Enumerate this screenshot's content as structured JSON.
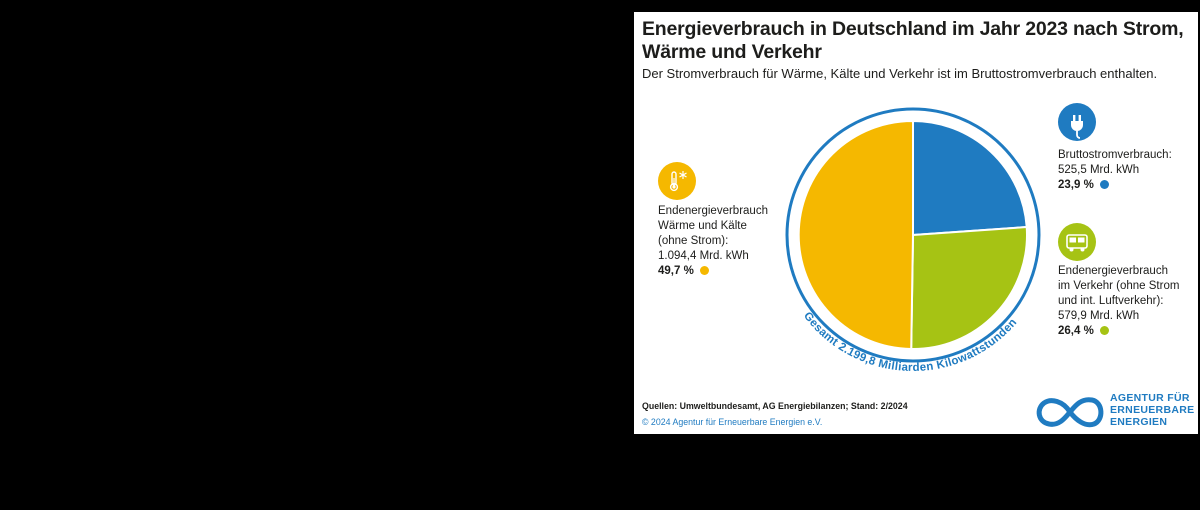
{
  "chart_data": {
    "type": "pie",
    "title": "Energieverbrauch in Deutschland im Jahr 2023 nach Strom, Wärme und Verkehr",
    "subtitle": "Der Stromverbrauch für Wärme, Kälte und Verkehr ist im Bruttostromverbrauch enthalten.",
    "total_label": "Gesamt 2.199,8 Milliarden Kilowattstunden",
    "unit": "Mrd. kWh",
    "slices": [
      {
        "name": "Bruttostromverbrauch",
        "value": 525.5,
        "percent": 23.9,
        "color": "#1f7bc1",
        "label_lines": [
          "Bruttostromverbrauch:",
          "525,5 Mrd. kWh"
        ],
        "percent_label": "23,9 %",
        "icon": "plug-icon"
      },
      {
        "name": "Endenergieverbrauch im Verkehr",
        "value": 579.9,
        "percent": 26.4,
        "color": "#a6c314",
        "label_lines": [
          "Endenergieverbrauch",
          "im Verkehr (ohne Strom",
          "und int. Luftverkehr):",
          "579,9 Mrd. kWh"
        ],
        "percent_label": "26,4 %",
        "icon": "bus-icon"
      },
      {
        "name": "Endenergieverbrauch Wärme und Kälte",
        "value": 1094.4,
        "percent": 49.7,
        "color": "#f5b800",
        "label_lines": [
          "Endenergieverbrauch",
          "Wärme und Kälte",
          "(ohne Strom):",
          "1.094,4 Mrd. kWh"
        ],
        "percent_label": "49,7 %",
        "icon": "thermometer-snowflake-icon"
      }
    ]
  },
  "footer": {
    "sources": "Quellen: Umweltbundesamt, AG Energiebilanzen; Stand: 2/2024",
    "copyright": "© 2024 Agentur für Erneuerbare Energien e.V."
  },
  "logo": {
    "lines": [
      "AGENTUR FÜR",
      "ERNEUERBARE",
      "ENERGIEN"
    ],
    "color": "#1f7bc1"
  }
}
